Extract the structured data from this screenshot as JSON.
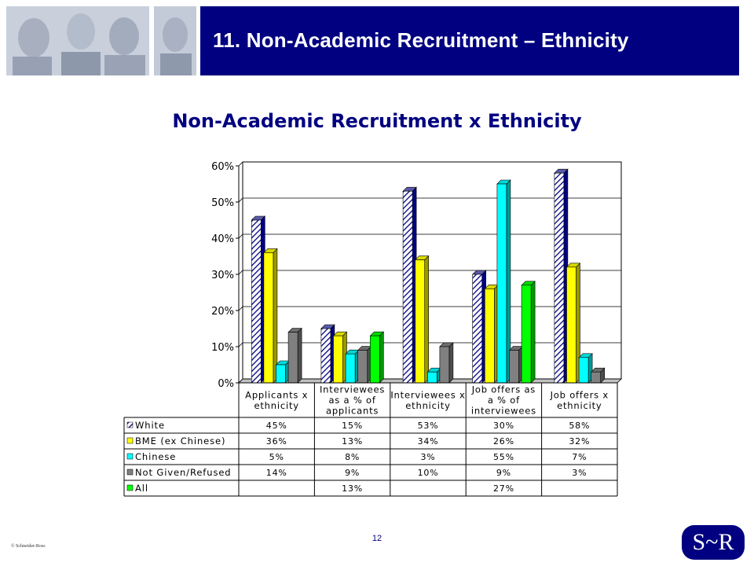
{
  "slide": {
    "title": "11. Non-Academic Recruitment – Ethnicity",
    "page_number": "12",
    "copyright": "© Schneider-Ross",
    "logo_text": "S~R",
    "colors": {
      "banner": "#000080",
      "title_text": "#ffffff",
      "chart_title": "#000080"
    }
  },
  "chart_data": {
    "type": "bar",
    "title": "Non-Academic Recruitment x Ethnicity",
    "categories": [
      [
        "Applicants x",
        "ethnicity"
      ],
      [
        "Interviewees",
        "as a % of",
        "applicants"
      ],
      [
        "Interviewees x",
        "ethnicity"
      ],
      [
        "Job offers as",
        "a % of",
        "interviewees"
      ],
      [
        "Job offers x",
        "ethnicity"
      ]
    ],
    "ylim": [
      0,
      60
    ],
    "y_ticks": [
      "0%",
      "10%",
      "20%",
      "30%",
      "40%",
      "50%",
      "60%"
    ],
    "grid": true,
    "legend": "table-below",
    "series": [
      {
        "name": "White",
        "values": [
          45,
          15,
          53,
          30,
          58
        ],
        "labels": [
          "45%",
          "15%",
          "53%",
          "30%",
          "58%"
        ],
        "color": "#1a1a8c",
        "pattern": "hatch"
      },
      {
        "name": "BME (ex Chinese)",
        "values": [
          36,
          13,
          34,
          26,
          32
        ],
        "labels": [
          "36%",
          "13%",
          "34%",
          "26%",
          "32%"
        ],
        "color": "#ffff00"
      },
      {
        "name": "Chinese",
        "values": [
          5,
          8,
          3,
          55,
          7
        ],
        "labels": [
          "5%",
          "8%",
          "3%",
          "55%",
          "7%"
        ],
        "color": "#00ffff"
      },
      {
        "name": "Not Given/Refused",
        "values": [
          14,
          9,
          10,
          9,
          3
        ],
        "labels": [
          "14%",
          "9%",
          "10%",
          "9%",
          "3%"
        ],
        "color": "#808080"
      },
      {
        "name": "All",
        "values": [
          null,
          13,
          null,
          27,
          null
        ],
        "labels": [
          "",
          "13%",
          "",
          "27%",
          ""
        ],
        "color": "#00ff00"
      }
    ]
  }
}
